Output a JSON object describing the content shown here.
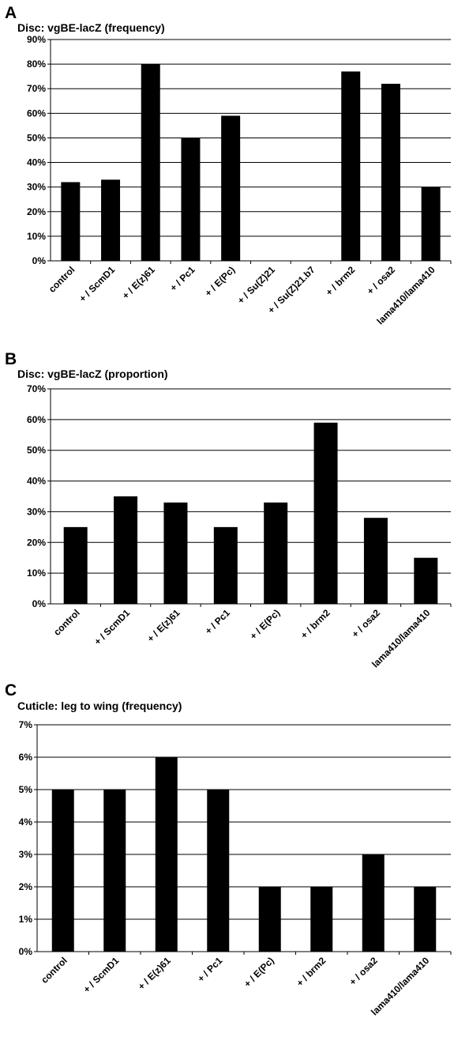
{
  "chart_data": [
    {
      "type": "bar",
      "panel": "A",
      "title": "Disc: vgBE-lacZ (frequency)",
      "categories": [
        "control",
        "+ / ScmD1",
        "+ / E(z)61",
        "+ / Pc1",
        "+ / E(Pc)",
        "+ / Su(Z)21",
        "+ / Su(Z)21.b7",
        "+ / brm2",
        "+ / osa2",
        "lama410/lama410"
      ],
      "values": [
        32,
        33,
        80,
        50,
        59,
        0,
        0,
        77,
        72,
        30
      ],
      "ylim": [
        0,
        90
      ],
      "yticks": [
        0,
        10,
        20,
        30,
        40,
        50,
        60,
        70,
        80,
        90
      ],
      "ytick_labels": [
        "0%",
        "10%",
        "20%",
        "30%",
        "40%",
        "50%",
        "60%",
        "70%",
        "80%",
        "90%"
      ],
      "xlabel": "",
      "ylabel": "",
      "grid": true,
      "legend": "none"
    },
    {
      "type": "bar",
      "panel": "B",
      "title": "Disc: vgBE-lacZ (proportion)",
      "categories": [
        "control",
        "+ / ScmD1",
        "+ / E(z)61",
        "+ / Pc1",
        "+ / E(Pc)",
        "+ / brm2",
        "+ / osa2",
        "lama410/lama410"
      ],
      "values": [
        25,
        35,
        33,
        25,
        33,
        59,
        28,
        15
      ],
      "ylim": [
        0,
        70
      ],
      "yticks": [
        0,
        10,
        20,
        30,
        40,
        50,
        60,
        70
      ],
      "ytick_labels": [
        "0%",
        "10%",
        "20%",
        "30%",
        "40%",
        "50%",
        "60%",
        "70%"
      ],
      "xlabel": "",
      "ylabel": "",
      "grid": true,
      "legend": "none"
    },
    {
      "type": "bar",
      "panel": "C",
      "title": "Cuticle: leg to wing (frequency)",
      "categories": [
        "control",
        "+ / ScmD1",
        "+ / E(z)61",
        "+ / Pc1",
        "+ / E(Pc)",
        "+ / brm2",
        "+ / osa2",
        "lama410/lama410"
      ],
      "values": [
        5,
        5,
        6,
        5,
        2,
        2,
        3,
        2
      ],
      "ylim": [
        0,
        7
      ],
      "yticks": [
        0,
        1,
        2,
        3,
        4,
        5,
        6,
        7
      ],
      "ytick_labels": [
        "0%",
        "1%",
        "2%",
        "3%",
        "4%",
        "5%",
        "6%",
        "7%"
      ],
      "xlabel": "",
      "ylabel": "",
      "grid": true,
      "legend": "none"
    }
  ],
  "colors": {
    "bar": "#000000",
    "grid": "#000000",
    "text": "#000000"
  }
}
